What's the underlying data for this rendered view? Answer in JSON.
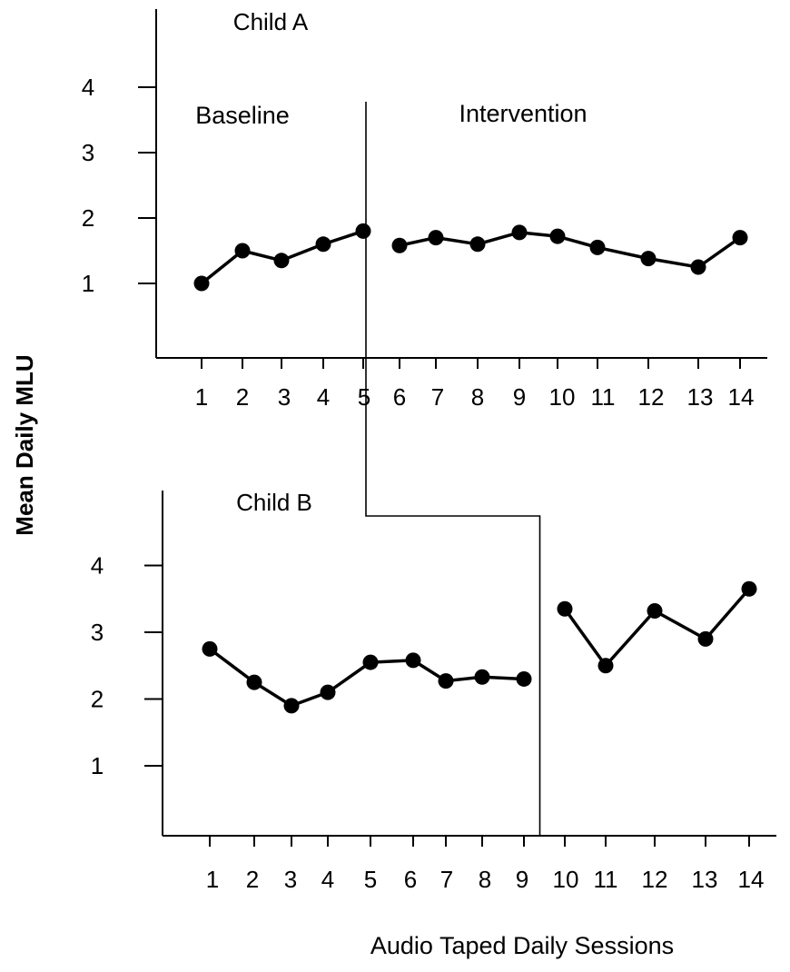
{
  "chart_data": {
    "type": "line",
    "ylabel": "Mean Daily MLU",
    "xlabel": "Audio Taped Daily Sessions",
    "phase_labels": [
      "Baseline",
      "Intervention"
    ],
    "colors": {
      "line": "#000000",
      "marker": "#000000"
    },
    "grid": false,
    "legend": "none",
    "panels": [
      {
        "title": "Child A",
        "x": [
          1,
          2,
          3,
          4,
          5,
          6,
          7,
          8,
          9,
          10,
          11,
          12,
          13,
          14
        ],
        "y": [
          1.0,
          1.5,
          1.35,
          1.6,
          1.8,
          1.58,
          1.7,
          1.6,
          1.78,
          1.72,
          1.55,
          1.38,
          1.25,
          1.7
        ],
        "segments": [
          [
            1,
            5
          ],
          [
            6,
            14
          ]
        ],
        "phase_change_after": 5,
        "yticks": [
          1,
          2,
          3,
          4
        ],
        "xticks": [
          1,
          2,
          3,
          4,
          5,
          6,
          7,
          8,
          9,
          10,
          11,
          12,
          13,
          14
        ],
        "ylim": [
          0,
          4.8
        ]
      },
      {
        "title": "Child B",
        "x": [
          1,
          2,
          3,
          4,
          5,
          6,
          7,
          8,
          9,
          10,
          11,
          12,
          13,
          14
        ],
        "y": [
          2.75,
          2.25,
          1.9,
          2.1,
          2.55,
          2.58,
          2.27,
          2.33,
          2.3,
          3.35,
          2.5,
          3.32,
          2.9,
          3.65
        ],
        "segments": [
          [
            1,
            9
          ],
          [
            10,
            14
          ]
        ],
        "phase_change_after": 9,
        "yticks": [
          1,
          2,
          3,
          4
        ],
        "xticks": [
          1,
          2,
          3,
          4,
          5,
          6,
          7,
          8,
          9,
          10,
          11,
          12,
          13,
          14
        ],
        "ylim": [
          0,
          4.8
        ]
      }
    ]
  }
}
